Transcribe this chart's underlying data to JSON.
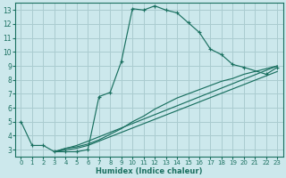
{
  "xlabel": "Humidex (Indice chaleur)",
  "bg_color": "#cce8ec",
  "grid_color": "#aaccd0",
  "line_color": "#1a7060",
  "xlim": [
    -0.5,
    23.5
  ],
  "ylim": [
    2.5,
    13.5
  ],
  "xticks": [
    0,
    1,
    2,
    3,
    4,
    5,
    6,
    7,
    8,
    9,
    10,
    11,
    12,
    13,
    14,
    15,
    16,
    17,
    18,
    19,
    20,
    21,
    22,
    23
  ],
  "yticks": [
    3,
    4,
    5,
    6,
    7,
    8,
    9,
    10,
    11,
    12,
    13
  ],
  "main_line_x": [
    0,
    1,
    2,
    3,
    4,
    5,
    6,
    7,
    8,
    9,
    10,
    11,
    12,
    13,
    14,
    15,
    16,
    17,
    18,
    19,
    20,
    22,
    23
  ],
  "main_line_y": [
    5.0,
    3.3,
    3.3,
    2.85,
    2.85,
    2.85,
    3.0,
    6.8,
    7.1,
    9.3,
    13.1,
    13.0,
    13.3,
    13.0,
    12.8,
    12.1,
    11.4,
    10.2,
    9.8,
    9.1,
    8.9,
    8.4,
    8.9
  ],
  "line2_x": [
    3,
    4,
    5,
    6,
    7,
    8,
    9,
    10,
    11,
    12,
    13,
    14,
    15,
    16,
    17,
    18,
    19,
    20,
    21,
    22,
    23
  ],
  "line2_y": [
    2.85,
    3.1,
    3.2,
    3.4,
    3.7,
    4.1,
    4.5,
    5.0,
    5.4,
    5.9,
    6.3,
    6.7,
    7.0,
    7.3,
    7.6,
    7.9,
    8.1,
    8.4,
    8.6,
    8.8,
    9.0
  ],
  "line3_x": [
    3,
    5,
    6,
    23
  ],
  "line3_y": [
    2.85,
    3.3,
    3.6,
    9.0
  ],
  "line4_x": [
    3,
    5,
    6,
    23
  ],
  "line4_y": [
    2.85,
    3.1,
    3.3,
    8.6
  ]
}
